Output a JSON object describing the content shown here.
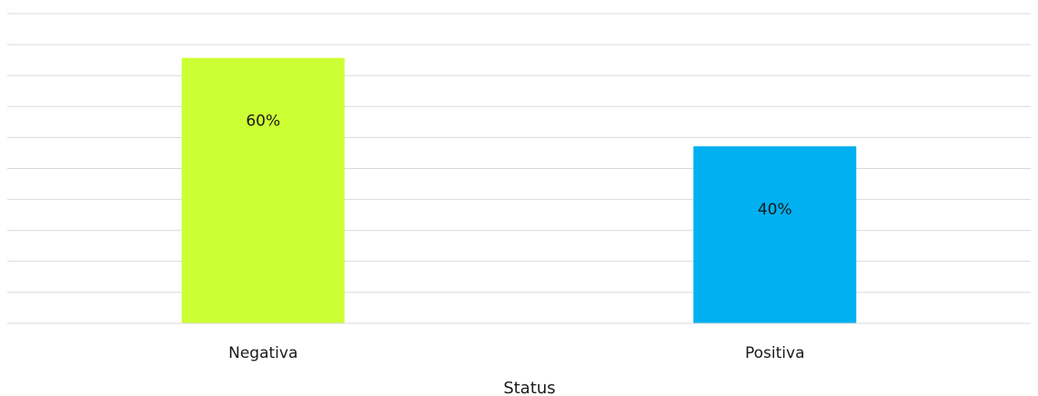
{
  "chart_data": {
    "type": "bar",
    "xlabel": "Status",
    "ylabel": "",
    "categories": [
      "Negativa",
      "Positiva"
    ],
    "values": [
      60,
      40
    ],
    "value_labels": [
      "60%",
      "40%"
    ],
    "ylim": [
      0,
      70
    ],
    "grid": true,
    "colors": [
      "#ccff33",
      "#00b0f0"
    ]
  }
}
